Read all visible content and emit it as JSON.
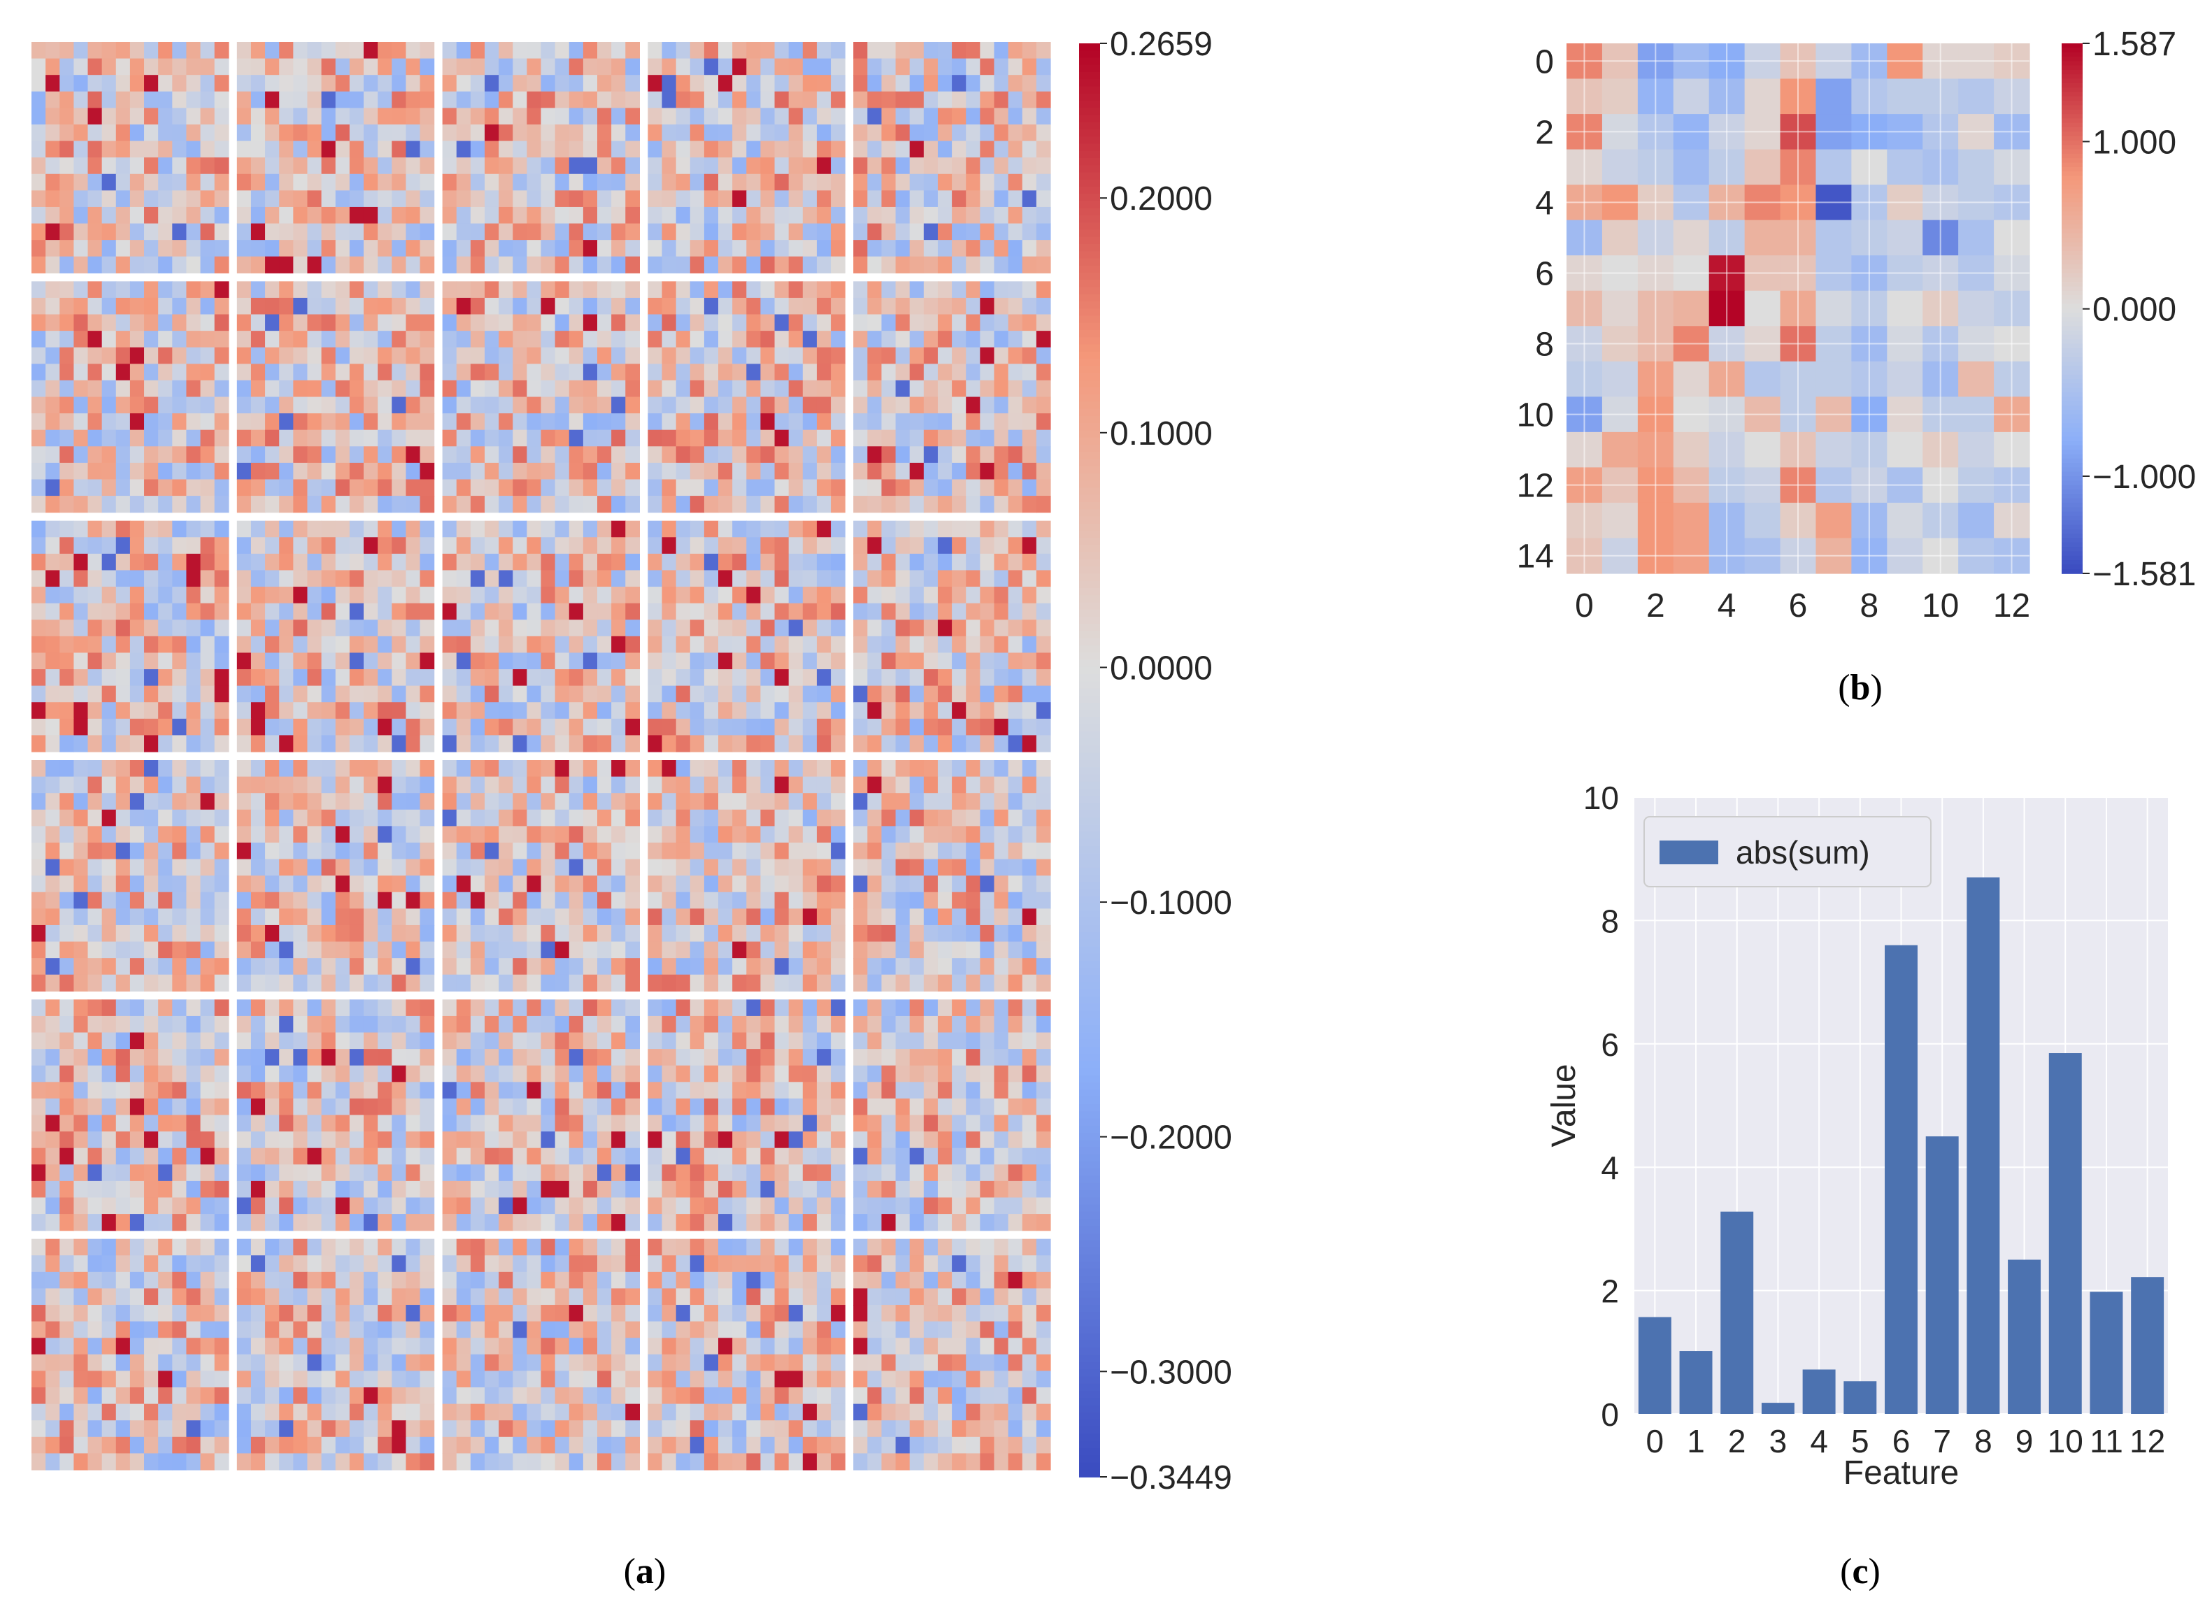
{
  "chart_data": [
    {
      "id": "a",
      "type": "heatmap",
      "description_panel": "(a)",
      "caption_letter": "a",
      "grid_rows": 6,
      "grid_cols": 5,
      "cells_per_tile": 14,
      "value_range": [
        -0.3449,
        0.2659
      ],
      "colorbar_ticks": [
        "0.2659",
        "0.2000",
        "0.1000",
        "0.0000",
        "−0.1000",
        "−0.2000",
        "−0.3000",
        "−0.3449"
      ],
      "colorbar_tick_values": [
        0.2659,
        0.2,
        0.1,
        0.0,
        -0.1,
        -0.2,
        -0.3,
        -0.3449
      ]
    },
    {
      "id": "b",
      "type": "heatmap",
      "caption_letter": "b",
      "rows": 15,
      "cols": 13,
      "value_range": [
        -1.581,
        1.587
      ],
      "y_ticks": [
        "0",
        "2",
        "4",
        "6",
        "8",
        "10",
        "12",
        "14"
      ],
      "x_ticks": [
        "0",
        "2",
        "4",
        "6",
        "8",
        "10",
        "12"
      ],
      "colorbar_ticks": [
        "1.587",
        "1.000",
        "0.000",
        "−1.000",
        "−1.581"
      ],
      "colorbar_tick_values": [
        1.587,
        1.0,
        0.0,
        -1.0,
        -1.581
      ],
      "values": [
        [
          0.9,
          0.3,
          -0.9,
          -0.6,
          -0.8,
          -0.2,
          0.3,
          -0.2,
          -0.6,
          0.8,
          0.1,
          0.1,
          0.2
        ],
        [
          0.3,
          0.2,
          -0.7,
          -0.2,
          -0.6,
          0.1,
          0.8,
          -0.9,
          -0.4,
          -0.3,
          -0.3,
          -0.4,
          -0.2
        ],
        [
          0.9,
          -0.1,
          -0.4,
          -0.7,
          -0.2,
          0.1,
          1.2,
          -0.9,
          -0.8,
          -0.7,
          -0.4,
          0.1,
          -0.6
        ],
        [
          0.1,
          -0.2,
          -0.3,
          -0.6,
          -0.3,
          0.3,
          0.9,
          -0.4,
          0.0,
          -0.4,
          -0.5,
          -0.3,
          -0.1
        ],
        [
          0.6,
          0.8,
          0.2,
          -0.4,
          0.5,
          0.9,
          0.8,
          -1.5,
          -0.4,
          0.2,
          -0.2,
          -0.3,
          -0.4
        ],
        [
          -0.6,
          0.2,
          -0.2,
          0.1,
          -0.3,
          0.5,
          0.5,
          -0.4,
          -0.3,
          -0.2,
          -1.1,
          -0.5,
          0.0
        ],
        [
          0.1,
          0.0,
          0.1,
          0.0,
          1.5,
          0.3,
          0.3,
          -0.4,
          -0.6,
          -0.3,
          -0.2,
          -0.4,
          -0.1
        ],
        [
          0.4,
          0.1,
          0.4,
          0.5,
          1.6,
          0.0,
          0.6,
          -0.1,
          -0.3,
          0.0,
          0.2,
          -0.2,
          -0.3
        ],
        [
          -0.2,
          0.2,
          0.4,
          0.9,
          -0.2,
          0.1,
          1.0,
          -0.3,
          -0.6,
          -0.1,
          -0.4,
          -0.1,
          0.0
        ],
        [
          -0.3,
          -0.2,
          0.7,
          0.1,
          0.6,
          -0.4,
          -0.3,
          -0.3,
          -0.4,
          -0.2,
          -0.6,
          0.4,
          -0.3
        ],
        [
          -0.9,
          -0.1,
          0.8,
          0.0,
          -0.1,
          0.4,
          -0.3,
          0.4,
          -0.8,
          0.1,
          -0.3,
          -0.3,
          0.6
        ],
        [
          0.1,
          0.6,
          0.7,
          0.2,
          -0.2,
          0.0,
          0.3,
          -0.2,
          -0.3,
          0.0,
          0.2,
          -0.2,
          0.0
        ],
        [
          0.7,
          0.3,
          0.8,
          0.4,
          -0.3,
          -0.2,
          0.9,
          -0.4,
          -0.2,
          -0.5,
          0.0,
          -0.3,
          -0.4
        ],
        [
          0.2,
          0.1,
          0.8,
          0.7,
          -0.6,
          -0.3,
          0.2,
          0.7,
          -0.6,
          -0.1,
          -0.3,
          -0.6,
          0.1
        ],
        [
          0.3,
          -0.2,
          0.8,
          0.7,
          -0.6,
          -0.5,
          -0.2,
          0.5,
          -0.7,
          -0.2,
          0.0,
          -0.4,
          -0.5
        ]
      ]
    },
    {
      "id": "c",
      "type": "bar",
      "caption_letter": "c",
      "xlabel": "Feature",
      "ylabel": "Value",
      "ylim": [
        0,
        10
      ],
      "y_ticks": [
        "0",
        "2",
        "4",
        "6",
        "8",
        "10"
      ],
      "y_tick_values": [
        0,
        2,
        4,
        6,
        8,
        10
      ],
      "categories": [
        "0",
        "1",
        "2",
        "3",
        "4",
        "5",
        "6",
        "7",
        "8",
        "9",
        "10",
        "11",
        "12"
      ],
      "series": [
        {
          "name": "abs(sum)",
          "color": "#4c72b0",
          "values": [
            1.57,
            1.02,
            3.28,
            0.18,
            0.72,
            0.53,
            7.6,
            4.5,
            8.7,
            2.5,
            5.85,
            1.98,
            2.22
          ]
        }
      ],
      "legend": "abs(sum)",
      "legend_position": "top-left",
      "grid": true
    }
  ],
  "captions": {
    "open": "(",
    "close": ")"
  },
  "colors": {
    "cold": "#3b4cc0",
    "neutral": "#dddddd",
    "warm": "#b40426",
    "bar": "#4c72b0",
    "panel_bg": "#eaeaf2"
  }
}
